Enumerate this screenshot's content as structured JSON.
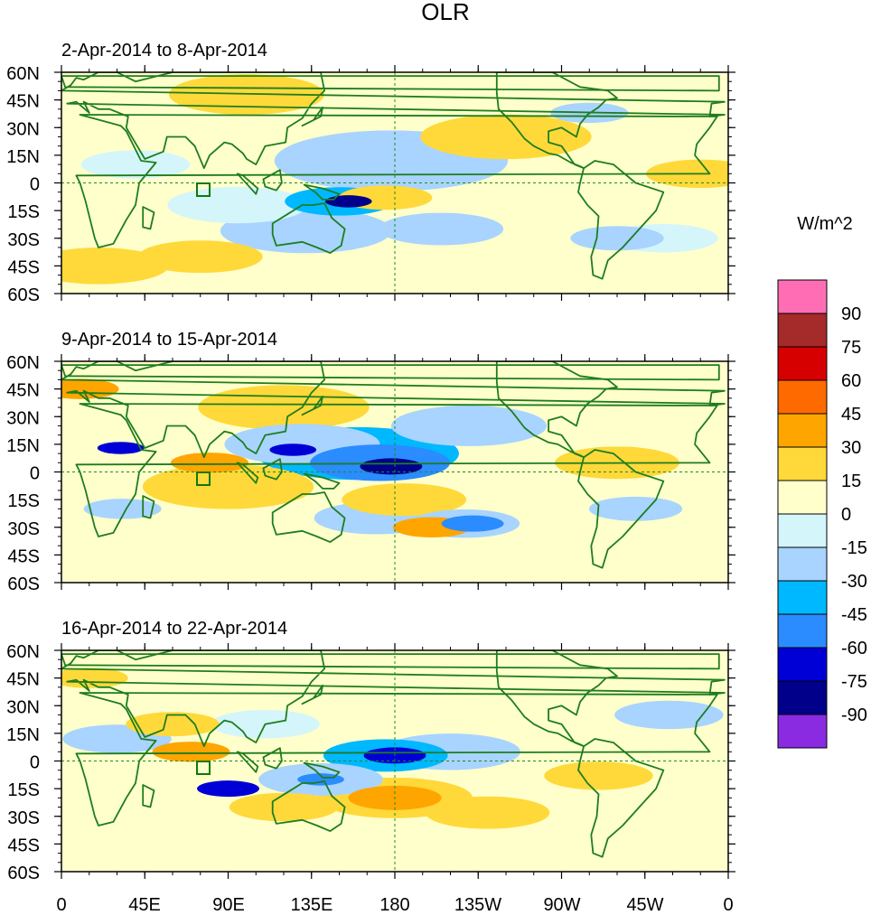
{
  "chart_data": {
    "type": "heatmap",
    "title": "OLR",
    "units_label": "W/m^2",
    "colorbar": {
      "levels": [
        "90",
        "75",
        "60",
        "45",
        "30",
        "15",
        "0",
        "-15",
        "-30",
        "-45",
        "-60",
        "-75",
        "-90"
      ],
      "colors": [
        "#ff6eb4",
        "#a52a2a",
        "#d70000",
        "#ff6a00",
        "#ffa500",
        "#ffd93a",
        "#ffffcc",
        "#d4f5fa",
        "#a8d4ff",
        "#00b8ff",
        "#2a8cff",
        "#0000d6",
        "#00008b",
        "#8a2be2"
      ]
    },
    "lat_ticks": [
      "60N",
      "45N",
      "30N",
      "15N",
      "0",
      "15S",
      "30S",
      "45S",
      "60S"
    ],
    "lon_ticks": [
      "0",
      "45E",
      "90E",
      "135E",
      "180",
      "135W",
      "90W",
      "45W",
      "0"
    ],
    "lat_range": [
      -60,
      60
    ],
    "lon_range": [
      0,
      360
    ],
    "panels": [
      {
        "period": "2-Apr-2014 to 8-Apr-2014",
        "features": [
          {
            "lon": 155,
            "lat": -10,
            "r": 6,
            "value": -90
          },
          {
            "lon": 150,
            "lat": -10,
            "r": 14,
            "value": -45
          },
          {
            "lon": 132,
            "lat": -26,
            "r": 22,
            "value": -30
          },
          {
            "lon": 178,
            "lat": 12,
            "r": 30,
            "value": -30
          },
          {
            "lon": 205,
            "lat": -25,
            "r": 16,
            "value": -30
          },
          {
            "lon": 95,
            "lat": -12,
            "r": 18,
            "value": -15
          },
          {
            "lon": 40,
            "lat": 10,
            "r": 14,
            "value": -15
          },
          {
            "lon": 300,
            "lat": -30,
            "r": 12,
            "value": -30
          },
          {
            "lon": 325,
            "lat": -30,
            "r": 14,
            "value": -15
          },
          {
            "lon": 285,
            "lat": 38,
            "r": 10,
            "value": -30
          },
          {
            "lon": 100,
            "lat": 48,
            "r": 20,
            "value": 15
          },
          {
            "lon": 240,
            "lat": 25,
            "r": 22,
            "value": 15
          },
          {
            "lon": 175,
            "lat": -8,
            "r": 12,
            "value": 15
          },
          {
            "lon": 75,
            "lat": -40,
            "r": 16,
            "value": 15
          },
          {
            "lon": 20,
            "lat": -45,
            "r": 18,
            "value": 15
          },
          {
            "lon": 345,
            "lat": 5,
            "r": 14,
            "value": 15
          }
        ]
      },
      {
        "period": "9-Apr-2014 to 15-Apr-2014",
        "features": [
          {
            "lon": 178,
            "lat": 3,
            "r": 8,
            "value": -90
          },
          {
            "lon": 172,
            "lat": 5,
            "r": 18,
            "value": -60
          },
          {
            "lon": 160,
            "lat": 10,
            "r": 26,
            "value": -45
          },
          {
            "lon": 125,
            "lat": 12,
            "r": 6,
            "value": -75
          },
          {
            "lon": 32,
            "lat": 13,
            "r": 6,
            "value": -75
          },
          {
            "lon": 222,
            "lat": -28,
            "r": 8,
            "value": -60
          },
          {
            "lon": 218,
            "lat": -28,
            "r": 14,
            "value": -30
          },
          {
            "lon": 170,
            "lat": -25,
            "r": 16,
            "value": -30
          },
          {
            "lon": 33,
            "lat": -20,
            "r": 10,
            "value": -30
          },
          {
            "lon": 220,
            "lat": 25,
            "r": 20,
            "value": -30
          },
          {
            "lon": 130,
            "lat": 15,
            "r": 20,
            "value": -30
          },
          {
            "lon": 310,
            "lat": -20,
            "r": 12,
            "value": -30
          },
          {
            "lon": 90,
            "lat": -8,
            "r": 22,
            "value": 15
          },
          {
            "lon": 80,
            "lat": 5,
            "r": 10,
            "value": 30
          },
          {
            "lon": 200,
            "lat": -30,
            "r": 10,
            "value": 30
          },
          {
            "lon": 185,
            "lat": -15,
            "r": 16,
            "value": 15
          },
          {
            "lon": 120,
            "lat": 35,
            "r": 22,
            "value": 15
          },
          {
            "lon": 10,
            "lat": 45,
            "r": 10,
            "value": 30
          },
          {
            "lon": 300,
            "lat": 5,
            "r": 16,
            "value": 15
          }
        ]
      },
      {
        "period": "16-Apr-2014 to 22-Apr-2014",
        "features": [
          {
            "lon": 90,
            "lat": -15,
            "r": 8,
            "value": -75
          },
          {
            "lon": 180,
            "lat": 3,
            "r": 8,
            "value": -75
          },
          {
            "lon": 140,
            "lat": -10,
            "r": 6,
            "value": -60
          },
          {
            "lon": 175,
            "lat": 3,
            "r": 16,
            "value": -45
          },
          {
            "lon": 140,
            "lat": -10,
            "r": 16,
            "value": -30
          },
          {
            "lon": 210,
            "lat": 5,
            "r": 18,
            "value": -30
          },
          {
            "lon": 30,
            "lat": 12,
            "r": 14,
            "value": -30
          },
          {
            "lon": 328,
            "lat": 25,
            "r": 14,
            "value": -30
          },
          {
            "lon": 110,
            "lat": 20,
            "r": 14,
            "value": -15
          },
          {
            "lon": 180,
            "lat": -20,
            "r": 12,
            "value": 30
          },
          {
            "lon": 180,
            "lat": -20,
            "r": 20,
            "value": 15
          },
          {
            "lon": 120,
            "lat": -25,
            "r": 14,
            "value": 15
          },
          {
            "lon": 230,
            "lat": -28,
            "r": 16,
            "value": 15
          },
          {
            "lon": 60,
            "lat": 20,
            "r": 12,
            "value": 15
          },
          {
            "lon": 70,
            "lat": 5,
            "r": 10,
            "value": 30
          },
          {
            "lon": 15,
            "lat": 45,
            "r": 10,
            "value": 15
          },
          {
            "lon": 290,
            "lat": -8,
            "r": 14,
            "value": 15
          }
        ]
      }
    ]
  }
}
